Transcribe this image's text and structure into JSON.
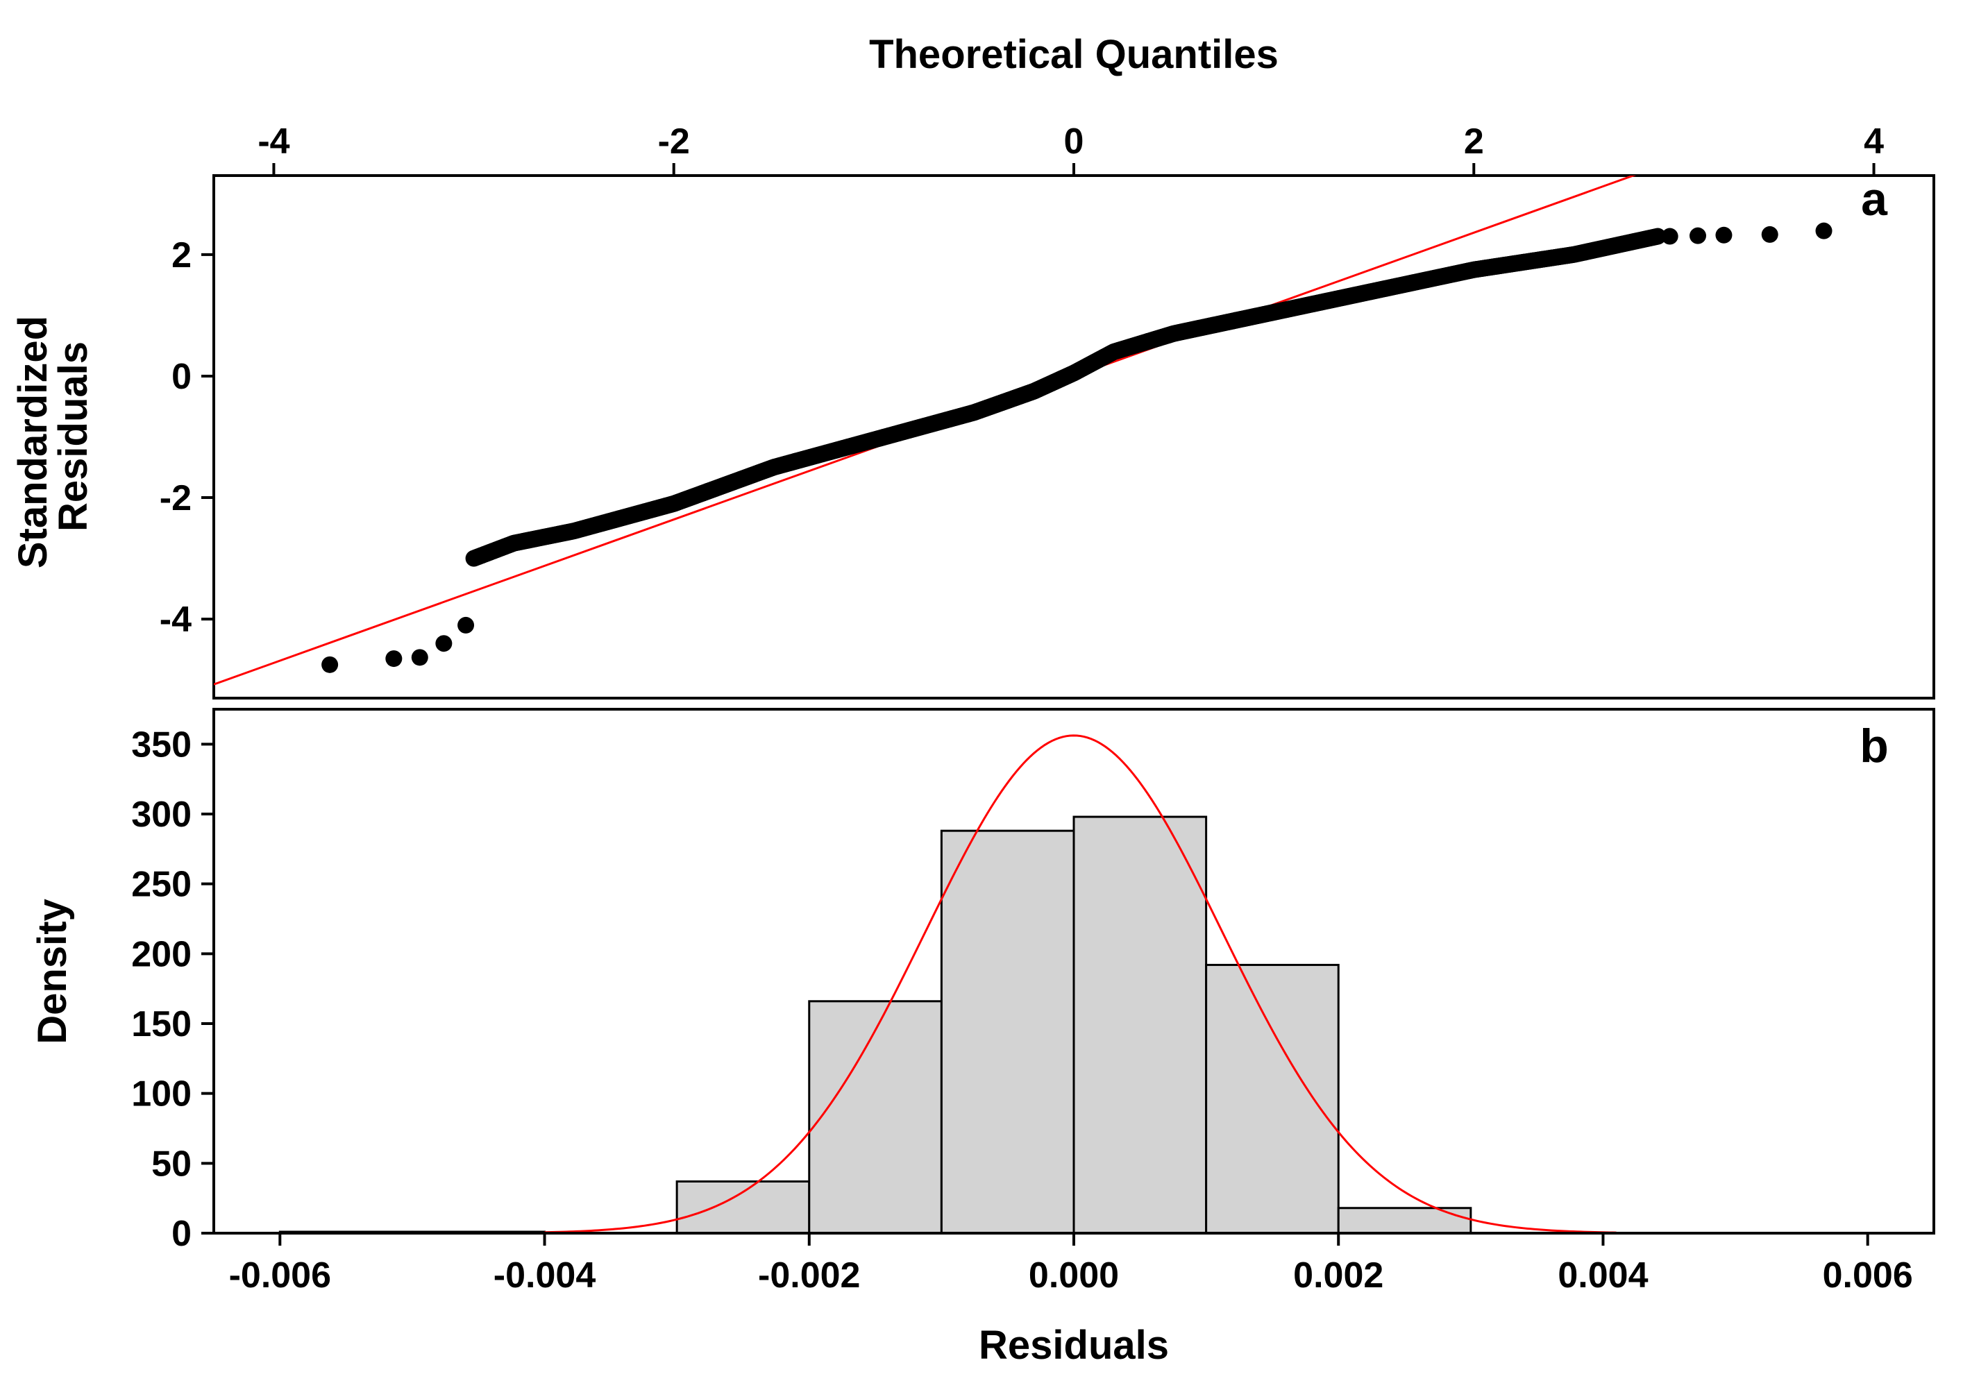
{
  "chart_data": [
    {
      "panel_label": "a",
      "type": "scatter",
      "title": "",
      "xlabel": "Theoretical Quantiles",
      "xlabel_position": "top",
      "ylabel_lines": [
        "Standardized",
        "Residuals"
      ],
      "xlim": [
        -4.3,
        4.3
      ],
      "ylim": [
        -5.3,
        3.3
      ],
      "xticks": [
        -4,
        -2,
        0,
        2,
        4
      ],
      "xtick_labels": [
        "-4",
        "-2",
        "0",
        "2",
        "4"
      ],
      "yticks": [
        2,
        0,
        -2,
        -4
      ],
      "ytick_labels": [
        "2",
        "0",
        "-2",
        "-4"
      ],
      "colors": {
        "points": "#000000",
        "reference_line": "#ff0000"
      },
      "reference_line": {
        "slope": 1.18,
        "intercept": 0.0
      },
      "outlier_points": [
        {
          "x": -3.72,
          "y": -4.75
        },
        {
          "x": -3.4,
          "y": -4.65
        },
        {
          "x": -3.27,
          "y": -4.63
        },
        {
          "x": -3.15,
          "y": -4.4
        },
        {
          "x": -3.04,
          "y": -4.1
        },
        {
          "x": 2.98,
          "y": 2.3
        },
        {
          "x": 3.12,
          "y": 2.31
        },
        {
          "x": 3.25,
          "y": 2.32
        },
        {
          "x": 3.48,
          "y": 2.33
        },
        {
          "x": 3.75,
          "y": 2.39
        }
      ],
      "qq_curve": {
        "x_range": [
          -3.0,
          2.92
        ],
        "points_count": 1100,
        "knots_x": [
          -3.0,
          -2.8,
          -2.5,
          -2.0,
          -1.5,
          -1.0,
          -0.5,
          -0.2,
          0.0,
          0.2,
          0.5,
          1.0,
          1.5,
          2.0,
          2.5,
          2.92
        ],
        "knots_y": [
          -3.0,
          -2.75,
          -2.55,
          -2.1,
          -1.5,
          -1.05,
          -0.6,
          -0.25,
          0.05,
          0.4,
          0.7,
          1.05,
          1.4,
          1.75,
          2.0,
          2.3
        ]
      }
    },
    {
      "panel_label": "b",
      "type": "bar",
      "title": "",
      "xlabel": "Residuals",
      "ylabel": "Density",
      "xlim": [
        -0.0065,
        0.0065
      ],
      "ylim": [
        0,
        375
      ],
      "xticks": [
        -0.006,
        -0.004,
        -0.002,
        0.0,
        0.002,
        0.004,
        0.006
      ],
      "xtick_labels": [
        "-0.006",
        "-0.004",
        "-0.002",
        "0.000",
        "0.002",
        "0.004",
        "0.006"
      ],
      "yticks": [
        0,
        50,
        100,
        150,
        200,
        250,
        300,
        350
      ],
      "ytick_labels": [
        "0",
        "50",
        "100",
        "150",
        "200",
        "250",
        "300",
        "350"
      ],
      "colors": {
        "bars": "#d3d3d3",
        "bar_edges": "#000000",
        "density_curve": "#ff0000"
      },
      "bins": [
        {
          "start": -0.006,
          "end": -0.005,
          "value": 1
        },
        {
          "start": -0.005,
          "end": -0.004,
          "value": 1
        },
        {
          "start": -0.004,
          "end": -0.003,
          "value": 0
        },
        {
          "start": -0.003,
          "end": -0.002,
          "value": 37
        },
        {
          "start": -0.002,
          "end": -0.001,
          "value": 166
        },
        {
          "start": -0.001,
          "end": 0.0,
          "value": 288
        },
        {
          "start": 0.0,
          "end": 0.001,
          "value": 298
        },
        {
          "start": 0.001,
          "end": 0.002,
          "value": 192
        },
        {
          "start": 0.002,
          "end": 0.003,
          "value": 18
        }
      ],
      "normal_curve": {
        "mean": 0.0,
        "sd": 0.00112,
        "x_range": [
          -0.004,
          0.0041
        ]
      }
    }
  ]
}
